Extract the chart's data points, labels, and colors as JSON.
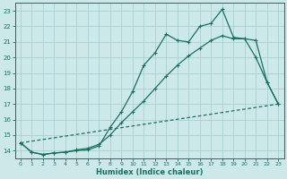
{
  "xlabel": "Humidex (Indice chaleur)",
  "bg_color": "#cce8e8",
  "grid_color": "#aacece",
  "line_color": "#1a7060",
  "xlim": [
    -0.5,
    23.5
  ],
  "ylim": [
    13.5,
    23.5
  ],
  "yticks": [
    14,
    15,
    16,
    17,
    18,
    19,
    20,
    21,
    22,
    23
  ],
  "xticks": [
    0,
    1,
    2,
    3,
    4,
    5,
    6,
    7,
    8,
    9,
    10,
    11,
    12,
    13,
    14,
    15,
    16,
    17,
    18,
    19,
    20,
    21,
    22,
    23
  ],
  "line1_x": [
    0,
    1,
    2,
    3,
    4,
    5,
    6,
    7,
    8,
    9,
    10,
    11,
    12,
    13,
    14,
    15,
    16,
    17,
    18,
    19,
    20,
    21,
    22,
    23
  ],
  "line1_y": [
    14.5,
    13.9,
    13.75,
    13.85,
    13.9,
    14.0,
    14.05,
    14.3,
    15.5,
    16.5,
    17.8,
    19.5,
    20.3,
    21.5,
    21.1,
    21.0,
    22.0,
    22.2,
    23.1,
    21.3,
    21.2,
    20.0,
    18.4,
    17.0
  ],
  "line2_x": [
    0,
    1,
    2,
    3,
    4,
    5,
    6,
    7,
    8,
    9,
    10,
    11,
    12,
    13,
    14,
    15,
    16,
    17,
    18,
    19,
    20,
    21,
    22,
    23
  ],
  "line2_y": [
    14.5,
    13.9,
    13.75,
    13.85,
    13.9,
    14.05,
    14.15,
    14.4,
    15.0,
    15.8,
    16.5,
    17.2,
    18.0,
    18.8,
    19.5,
    20.1,
    20.6,
    21.1,
    21.4,
    21.2,
    21.2,
    21.1,
    18.4,
    17.0
  ],
  "line3_x": [
    0,
    23
  ],
  "line3_y": [
    14.5,
    17.0
  ]
}
